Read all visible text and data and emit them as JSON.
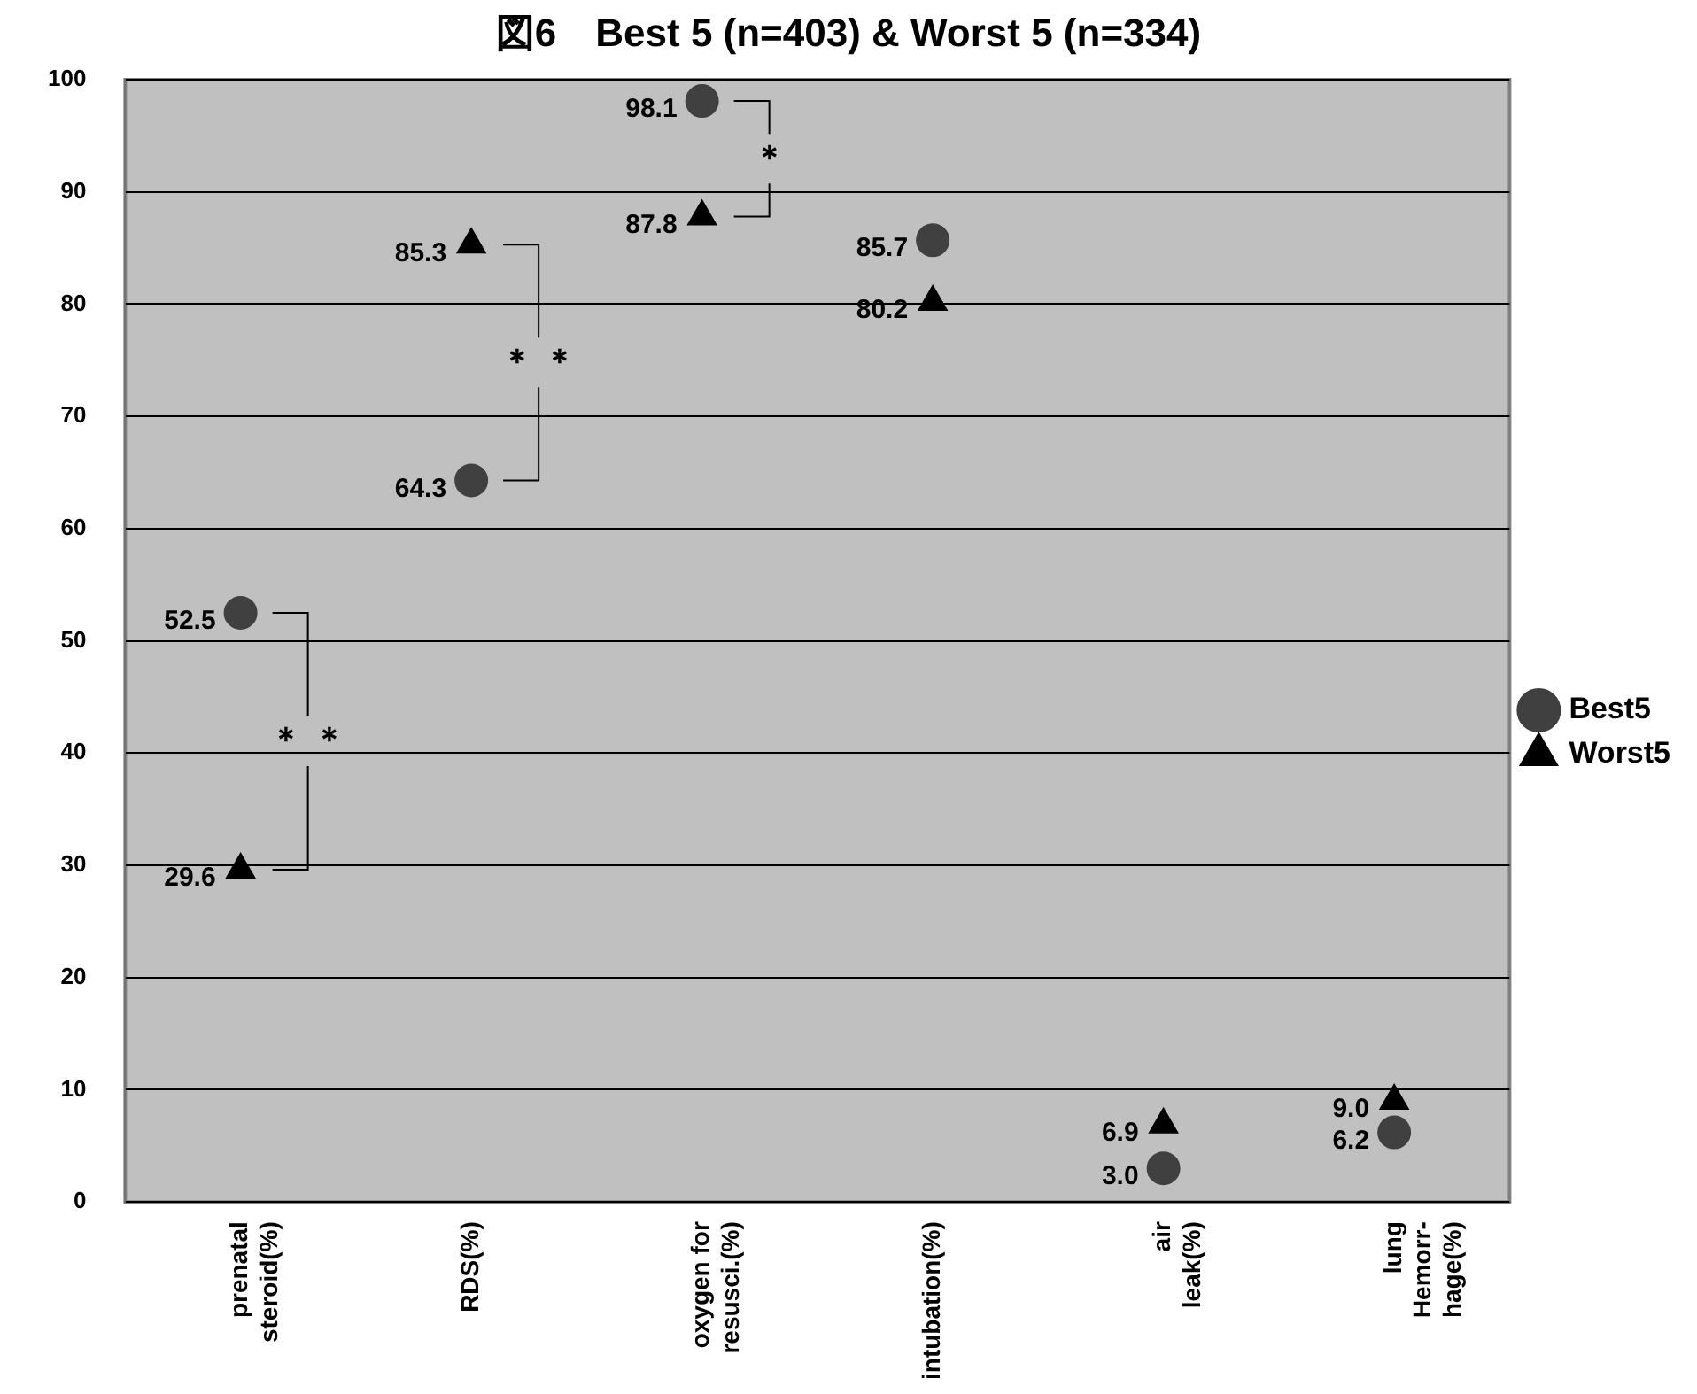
{
  "chart_data": {
    "type": "scatter",
    "title": "図6　Best 5 (n=403) & Worst 5 (n=334)",
    "categories": [
      "prenatal\nsteroid(%)",
      "RDS(%)",
      "oxygen for\nresusci.(%)",
      "intubation(%)",
      "air\nleak(%)",
      "lung\nHemorr-\nhage(%)"
    ],
    "series": [
      {
        "name": "Best5",
        "color": "#404040",
        "marker": "circle",
        "values": [
          52.5,
          64.3,
          98.1,
          85.7,
          3.0,
          6.2
        ],
        "value_labels": [
          "52.5",
          "64.3",
          "98.1",
          "85.7",
          "3.0",
          "6.2"
        ]
      },
      {
        "name": "Worst5",
        "color": "#000000",
        "marker": "triangle",
        "values": [
          29.6,
          85.3,
          87.8,
          80.2,
          6.9,
          9.0
        ],
        "value_labels": [
          "29.6",
          "85.3",
          "87.8",
          "80.2",
          "6.9",
          "9.0"
        ]
      }
    ],
    "ylim": [
      0,
      100
    ],
    "yticks": [
      0,
      10,
      20,
      30,
      40,
      50,
      60,
      70,
      80,
      90,
      100
    ],
    "grid": "y",
    "legend": "right",
    "annotations": [
      "＊ ＊",
      "＊ ＊",
      "＊"
    ]
  }
}
